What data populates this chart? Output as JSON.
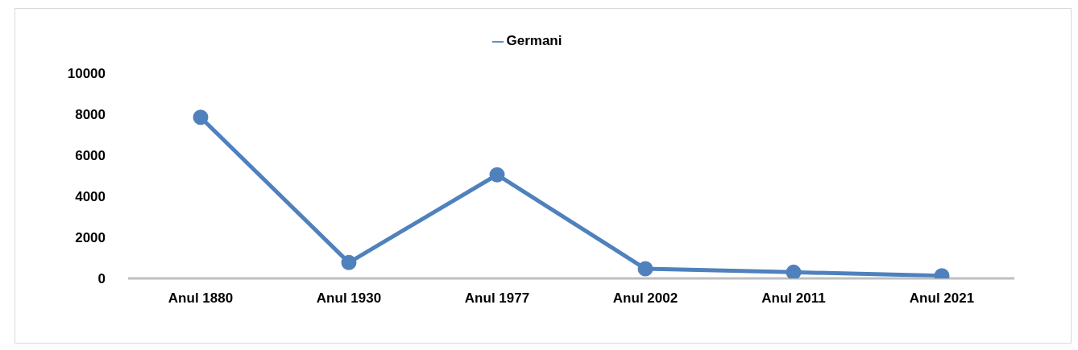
{
  "chart_data": {
    "type": "line",
    "categories": [
      "Anul 1880",
      "Anul 1930",
      "Anul 1977",
      "Anul 2002",
      "Anul 2011",
      "Anul 2021"
    ],
    "series": [
      {
        "name": "Germani",
        "color": "#4f81bd",
        "values": [
          7850,
          770,
          5050,
          470,
          300,
          130
        ]
      }
    ],
    "ylim": [
      0,
      10000
    ],
    "yticks": [
      0,
      2000,
      4000,
      6000,
      8000,
      10000
    ],
    "grid": false,
    "legend": "top",
    "marker": "circle",
    "line_style": "solid"
  }
}
